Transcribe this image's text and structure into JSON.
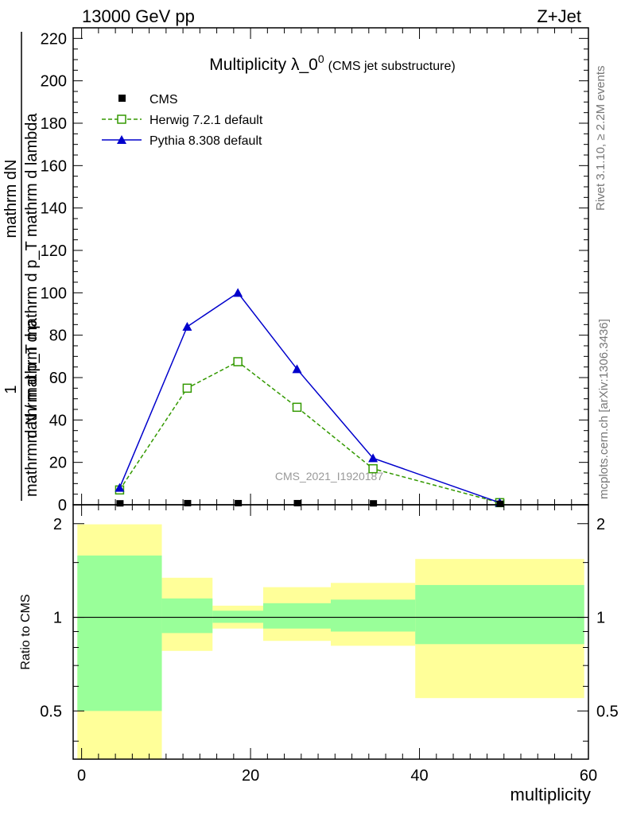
{
  "header": {
    "energy_label": "13000 GeV pp",
    "process_label": "Z+Jet"
  },
  "side_labels": {
    "rivet": "Rivet 3.1.10, ≥ 2.2M events",
    "mcplots": "mcplots.cern.ch [arXiv:1306.3436]"
  },
  "colors": {
    "herwig": "#339900",
    "pythia": "#0000cc",
    "cms": "#000000",
    "band_outer": "#ffff99",
    "band_inner": "#99ff99"
  },
  "chart_data": [
    {
      "type": "line",
      "title": "Multiplicity λ_0",
      "title_superscript": "0",
      "subtitle": "(CMS jet substructure)",
      "ylabel_line1": "1",
      "ylabel_line2": "mathrm d N / mathrm d p",
      "ylabel_line3": "mathrm dN",
      "ylabel_line4": "mathrm d p_T mathrm d p_T mathrm d lambda",
      "analysis_id": "CMS_2021_I1920187",
      "xlim": [
        -1,
        60
      ],
      "ylim": [
        0,
        225
      ],
      "yticks": [
        0,
        20,
        40,
        60,
        80,
        100,
        120,
        140,
        160,
        180,
        200,
        220
      ],
      "legend_position": "top-left",
      "series": [
        {
          "name": "CMS",
          "marker": "square-filled",
          "x": [
            4.5,
            12.5,
            18.5,
            25.5,
            34.5,
            49.5
          ],
          "y": [
            0.3,
            0.4,
            0.4,
            0.4,
            0.3,
            0.1
          ]
        },
        {
          "name": "Herwig 7.2.1 default",
          "marker": "square-open",
          "style": "dashed",
          "x": [
            4.5,
            12.5,
            18.5,
            25.5,
            34.5,
            49.5
          ],
          "y": [
            7,
            55,
            67.5,
            46,
            17,
            1
          ]
        },
        {
          "name": "Pythia 8.308 default",
          "marker": "triangle",
          "style": "solid",
          "x": [
            4.5,
            12.5,
            18.5,
            25.5,
            34.5,
            49.5
          ],
          "y": [
            8,
            84,
            100,
            64,
            22,
            1
          ]
        }
      ]
    },
    {
      "type": "area",
      "ylabel": "Ratio to CMS",
      "xlabel": "multiplicity",
      "xlim": [
        -1,
        60
      ],
      "ylim": [
        0.35,
        2.3
      ],
      "yscale": "log",
      "yticks": [
        0.5,
        1,
        2
      ],
      "ytick_labels": [
        "0.5",
        "1",
        "2"
      ],
      "xticks": [
        0,
        20,
        40,
        60
      ],
      "xtick_labels": [
        "0",
        "20",
        "40",
        "60"
      ],
      "reference_line": 1,
      "bins": [
        {
          "x_lo": -0.5,
          "x_hi": 9.5,
          "outer": [
            0.35,
            1.99
          ],
          "inner": [
            0.5,
            1.58
          ]
        },
        {
          "x_lo": 9.5,
          "x_hi": 15.5,
          "outer": [
            0.78,
            1.34
          ],
          "inner": [
            0.89,
            1.15
          ]
        },
        {
          "x_lo": 15.5,
          "x_hi": 21.5,
          "outer": [
            0.92,
            1.09
          ],
          "inner": [
            0.96,
            1.05
          ]
        },
        {
          "x_lo": 21.5,
          "x_hi": 29.5,
          "outer": [
            0.84,
            1.25
          ],
          "inner": [
            0.92,
            1.11
          ]
        },
        {
          "x_lo": 29.5,
          "x_hi": 39.5,
          "outer": [
            0.81,
            1.29
          ],
          "inner": [
            0.9,
            1.14
          ]
        },
        {
          "x_lo": 39.5,
          "x_hi": 59.5,
          "outer": [
            0.55,
            1.54
          ],
          "inner": [
            0.82,
            1.27
          ]
        }
      ]
    }
  ]
}
